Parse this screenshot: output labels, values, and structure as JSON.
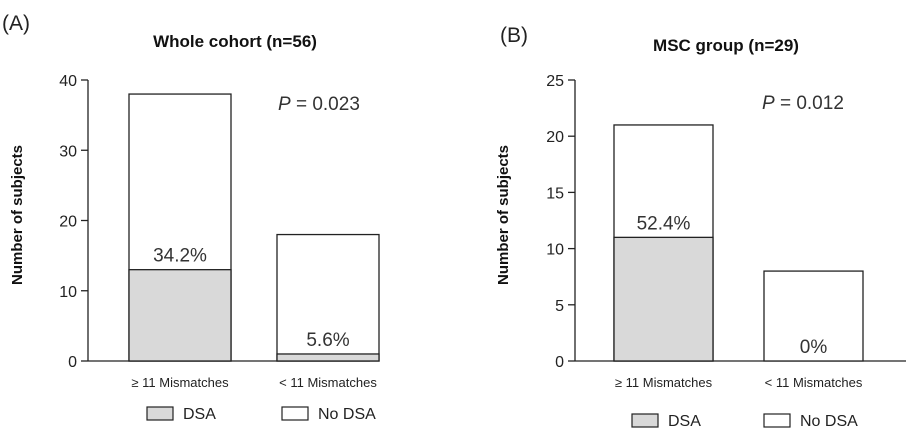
{
  "chart_data": [
    {
      "type": "bar",
      "stacked": true,
      "panel_label": "(A)",
      "title": "Whole cohort (n=56)",
      "ylabel": "Number of subjects",
      "ylim": [
        0,
        40
      ],
      "yticks": [
        "0",
        "10",
        "20",
        "30",
        "40"
      ],
      "categories": [
        "≥ 11 Mismatches",
        "< 11 Mismatches"
      ],
      "series": [
        {
          "name": "DSA",
          "values": [
            13,
            1
          ],
          "color": "#d9d9d9"
        },
        {
          "name": "No DSA",
          "values": [
            25,
            17
          ],
          "color": "#ffffff"
        }
      ],
      "totals": [
        38,
        18
      ],
      "percent_labels": [
        "34.2%",
        "5.6%"
      ],
      "p_value_prefix": "P",
      "p_value_text": " = 0.023",
      "legend": [
        {
          "label": "DSA",
          "color": "#d9d9d9"
        },
        {
          "label": "No DSA",
          "color": "#ffffff"
        }
      ]
    },
    {
      "type": "bar",
      "stacked": true,
      "panel_label": "(B)",
      "title": "MSC group (n=29)",
      "ylabel": "Number of subjects",
      "ylim": [
        0,
        25
      ],
      "yticks": [
        "0",
        "5",
        "10",
        "15",
        "20",
        "25"
      ],
      "categories": [
        "≥ 11 Mismatches",
        "< 11 Mismatches"
      ],
      "series": [
        {
          "name": "DSA",
          "values": [
            11,
            0
          ],
          "color": "#d9d9d9"
        },
        {
          "name": "No DSA",
          "values": [
            10,
            8
          ],
          "color": "#ffffff"
        }
      ],
      "totals": [
        21,
        8
      ],
      "percent_labels": [
        "52.4%",
        "0%"
      ],
      "p_value_prefix": "P",
      "p_value_text": " = 0.012",
      "legend": [
        {
          "label": "DSA",
          "color": "#d9d9d9"
        },
        {
          "label": "No DSA",
          "color": "#ffffff"
        }
      ]
    }
  ]
}
